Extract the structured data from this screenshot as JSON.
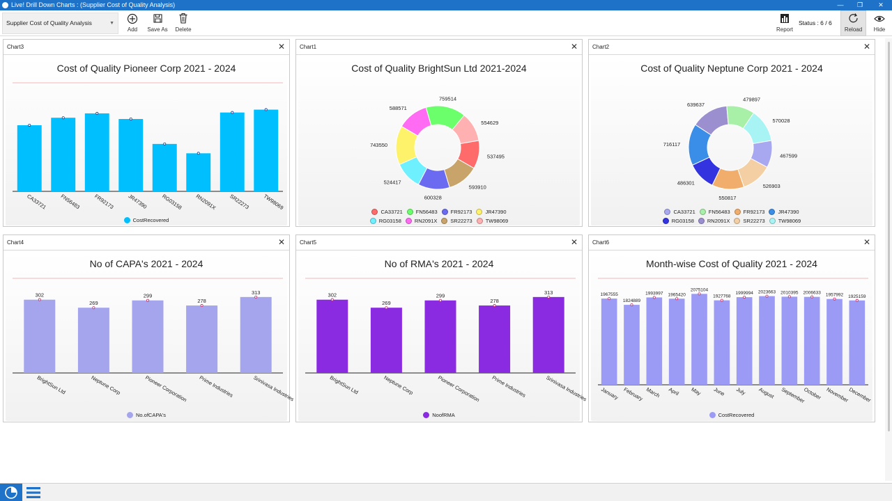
{
  "window": {
    "title": "Live! Drill Down Charts : (Supplier Cost of Quality Analysis)"
  },
  "toolbar": {
    "selector_value": "Supplier Cost of Quality Analysis",
    "add_label": "Add",
    "save_as_label": "Save As",
    "delete_label": "Delete",
    "report_label": "Report",
    "status_text": "Status : 6 / 6",
    "reload_label": "Reload",
    "hide_label": "Hide"
  },
  "panels": [
    {
      "header": "Chart3",
      "title": "Cost of Quality Pioneer Corp 2021 - 2024",
      "legend": "CostRecovered"
    },
    {
      "header": "Chart1",
      "title": "Cost of Quality BrightSun Ltd 2021-2024"
    },
    {
      "header": "Chart2",
      "title": "Cost of Quality Neptune Corp  2021 - 2024"
    },
    {
      "header": "Chart4",
      "title": "No of CAPA's 2021 - 2024",
      "legend": "No.ofCAPA's"
    },
    {
      "header": "Chart5",
      "title": "No of RMA's 2021 - 2024",
      "legend": "NoofRMA"
    },
    {
      "header": "Chart6",
      "title": "Month-wise Cost of Quality 2021 - 2024",
      "legend": "CostRecovered"
    }
  ],
  "colors": {
    "accent": "#1e72c8",
    "chart3_bar": "#00bfff",
    "chart4_bar": "#a5a5ee",
    "chart5_bar": "#8a2be2",
    "chart6_bar": "#9b9bf5"
  },
  "chart_data": [
    {
      "id": "chart3",
      "type": "bar",
      "title": "Cost of Quality Pioneer Corp 2021 - 2024",
      "categories": [
        "CA33721",
        "FN56483",
        "FR92173",
        "JR47390",
        "RG03158",
        "RN2091X",
        "SR22273",
        "TW98069"
      ],
      "series": [
        {
          "name": "CostRecovered",
          "values": [
            530000,
            590000,
            625000,
            580000,
            380000,
            305000,
            632000,
            655000
          ]
        }
      ],
      "ylim": [
        0,
        870000
      ],
      "legend": "bottom",
      "grid": false
    },
    {
      "id": "chart1",
      "type": "pie",
      "title": "Cost of Quality BrightSun Ltd 2021-2024",
      "categories": [
        "CA33721",
        "FN56483",
        "FR92173",
        "JR47390",
        "RG03158",
        "RN2091X",
        "SR22273",
        "TW98069"
      ],
      "slices": [
        {
          "label": "CA33721",
          "value": 537495,
          "color": "#ff6b6b"
        },
        {
          "label": "SR22273",
          "value": 593910,
          "color": "#c9a46a"
        },
        {
          "label": "FR92173",
          "value": 600328,
          "color": "#6b6bf2"
        },
        {
          "label": "RG03158",
          "value": 524417,
          "color": "#6ff0ff"
        },
        {
          "label": "JR47390",
          "value": 743550,
          "color": "#fff26b"
        },
        {
          "label": "RN2091X",
          "value": 588571,
          "color": "#ff6bf2"
        },
        {
          "label": "FN56483",
          "value": 759514,
          "color": "#6bff6b"
        },
        {
          "label": "TW98069",
          "value": 554629,
          "color": "#ffb0b0"
        }
      ],
      "legend": "bottom"
    },
    {
      "id": "chart2",
      "type": "pie",
      "title": "Cost of Quality Neptune Corp  2021 - 2024",
      "categories": [
        "CA33721",
        "FN56483",
        "FR92173",
        "JR47390",
        "RG03158",
        "RN2091X",
        "SR22273",
        "TW98069"
      ],
      "slices": [
        {
          "label": "CA33721",
          "value": 467599,
          "color": "#a8a8f0"
        },
        {
          "label": "SR22273",
          "value": 526903,
          "color": "#f4cfa4"
        },
        {
          "label": "FR92173",
          "value": 550817,
          "color": "#f0ad6b"
        },
        {
          "label": "RG03158",
          "value": 486301,
          "color": "#3333e0"
        },
        {
          "label": "JR47390",
          "value": 716117,
          "color": "#3b8ee8"
        },
        {
          "label": "RN2091X",
          "value": 639637,
          "color": "#9b8fd0"
        },
        {
          "label": "FN56483",
          "value": 479897,
          "color": "#a8f0a8"
        },
        {
          "label": "TW98069",
          "value": 570028,
          "color": "#a8f4f4"
        }
      ],
      "legend": "bottom"
    },
    {
      "id": "chart4",
      "type": "bar",
      "title": "No of CAPA's 2021 - 2024",
      "categories": [
        "BrightSun Ltd",
        "Neptune Corp",
        "Pioneer Corporation",
        "Prime Industries",
        "Srinivasa Industries"
      ],
      "series": [
        {
          "name": "No.ofCAPA's",
          "values": [
            302,
            269,
            299,
            278,
            313
          ]
        }
      ],
      "ylim": [
        0,
        390
      ],
      "legend": "bottom",
      "data_labels": true
    },
    {
      "id": "chart5",
      "type": "bar",
      "title": "No of RMA's 2021 - 2024",
      "categories": [
        "BrightSun Ltd",
        "Neptune Corp",
        "Pioneer Corporation",
        "Prime Industries",
        "Srinivasa Industries"
      ],
      "series": [
        {
          "name": "NoofRMA",
          "values": [
            302,
            269,
            299,
            278,
            313
          ]
        }
      ],
      "ylim": [
        0,
        390
      ],
      "legend": "bottom",
      "data_labels": true
    },
    {
      "id": "chart6",
      "type": "bar",
      "title": "Month-wise Cost of Quality 2021 - 2024",
      "categories": [
        "January",
        "February",
        "March",
        "April",
        "May",
        "June",
        "July",
        "August",
        "September",
        "October",
        "November",
        "December"
      ],
      "series": [
        {
          "name": "CostRecovered",
          "values": [
            1967555,
            1824889,
            1993997,
            1965420,
            2075104,
            1927768,
            1999994,
            2023663,
            2010395,
            2006633,
            1957992,
            1925159
          ]
        }
      ],
      "ylim": [
        0,
        2430000
      ],
      "legend": "bottom",
      "data_labels": true
    }
  ]
}
